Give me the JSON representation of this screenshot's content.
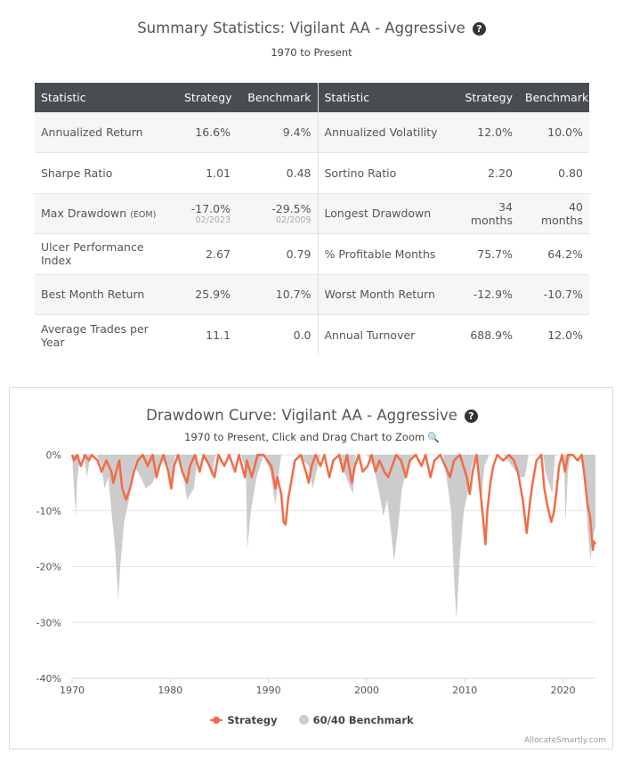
{
  "summary": {
    "title": "Summary Statistics: Vigilant AA - Aggressive",
    "subtitle": "1970 to Present",
    "help_glyph": "?",
    "headers": [
      "Statistic",
      "Strategy",
      "Benchmark",
      "Statistic",
      "Strategy",
      "Benchmark"
    ],
    "rows": [
      {
        "label1": "Annualized Return",
        "s1": "16.6%",
        "b1": "9.4%",
        "label2": "Annualized Volatility",
        "s2": "12.0%",
        "b2": "10.0%"
      },
      {
        "label1": "Sharpe Ratio",
        "s1": "1.01",
        "b1": "0.48",
        "label2": "Sortino Ratio",
        "s2": "2.20",
        "b2": "0.80"
      },
      {
        "label1": "Max Drawdown",
        "tag1": "(EOM)",
        "s1": "-17.0%",
        "s1_date": "02/2023",
        "b1": "-29.5%",
        "b1_date": "02/2009",
        "label2": "Longest Drawdown",
        "s2": "34 months",
        "b2": "40 months"
      },
      {
        "label1": "Ulcer Performance Index",
        "s1": "2.67",
        "b1": "0.79",
        "label2": "% Profitable Months",
        "s2": "75.7%",
        "b2": "64.2%"
      },
      {
        "label1": "Best Month Return",
        "s1": "25.9%",
        "b1": "10.7%",
        "label2": "Worst Month Return",
        "s2": "-12.9%",
        "b2": "-10.7%"
      },
      {
        "label1": "Average Trades per Year",
        "s1": "11.1",
        "b1": "0.0",
        "label2": "Annual Turnover",
        "s2": "688.9%",
        "b2": "12.0%"
      }
    ]
  },
  "chart": {
    "help_glyph": "?",
    "zoom_glyph": "🔍",
    "credits": "AllocateSmartly.com"
  },
  "chart_data": {
    "type": "area",
    "title": "Drawdown Curve: Vigilant AA - Aggressive",
    "subtitle": "1970 to Present, Click and Drag Chart to Zoom",
    "xlim": [
      1970,
      2023.3
    ],
    "ylim": [
      -40,
      0
    ],
    "x_ticks": [
      1970,
      1980,
      1990,
      2000,
      2010,
      2020
    ],
    "y_ticks": [
      0,
      -10,
      -20,
      -30,
      -40
    ],
    "y_tick_labels": [
      "0%",
      "-10%",
      "-20%",
      "-30%",
      "-40%"
    ],
    "legend": [
      "Strategy",
      "60/40 Benchmark"
    ],
    "series": [
      {
        "name": "60/40 Benchmark",
        "color": "#cccccc",
        "style": "area",
        "points": [
          [
            1970,
            0
          ],
          [
            1970.2,
            -6
          ],
          [
            1970.4,
            -11
          ],
          [
            1970.5,
            -5
          ],
          [
            1970.8,
            0
          ],
          [
            1971.2,
            0
          ],
          [
            1971.5,
            -4
          ],
          [
            1971.9,
            0
          ],
          [
            1972.5,
            0
          ],
          [
            1973.0,
            -2
          ],
          [
            1973.3,
            -6
          ],
          [
            1973.7,
            -4
          ],
          [
            1974.0,
            -10
          ],
          [
            1974.4,
            -17
          ],
          [
            1974.7,
            -26
          ],
          [
            1974.9,
            -20
          ],
          [
            1975.3,
            -12
          ],
          [
            1975.8,
            -8
          ],
          [
            1976.3,
            -2
          ],
          [
            1977.0,
            -4
          ],
          [
            1977.5,
            -6
          ],
          [
            1978.2,
            -5
          ],
          [
            1978.8,
            -2
          ],
          [
            1979.3,
            -1
          ],
          [
            1980.2,
            -5
          ],
          [
            1980.5,
            0
          ],
          [
            1981.2,
            -2
          ],
          [
            1981.7,
            -8
          ],
          [
            1982.4,
            -6
          ],
          [
            1982.8,
            0
          ],
          [
            1983.6,
            0
          ],
          [
            1984.2,
            -4
          ],
          [
            1984.6,
            0
          ],
          [
            1985.5,
            0
          ],
          [
            1986.7,
            0
          ],
          [
            1987.2,
            0
          ],
          [
            1987.7,
            -3
          ],
          [
            1987.85,
            -17
          ],
          [
            1988.2,
            -10
          ],
          [
            1988.8,
            -4
          ],
          [
            1989.5,
            0
          ],
          [
            1990.2,
            -3
          ],
          [
            1990.7,
            -9
          ],
          [
            1991.0,
            -4
          ],
          [
            1991.3,
            0
          ],
          [
            1992.0,
            0
          ],
          [
            1993.0,
            0
          ],
          [
            1994.1,
            -2
          ],
          [
            1994.5,
            -6
          ],
          [
            1994.9,
            -3
          ],
          [
            1995.3,
            0
          ],
          [
            1997.0,
            0
          ],
          [
            1998.6,
            -7
          ],
          [
            1998.9,
            0
          ],
          [
            2000.0,
            0
          ],
          [
            2000.7,
            -2
          ],
          [
            2001.3,
            -7
          ],
          [
            2001.7,
            -11
          ],
          [
            2002.1,
            -8
          ],
          [
            2002.5,
            -14
          ],
          [
            2002.8,
            -19
          ],
          [
            2003.2,
            -13
          ],
          [
            2003.6,
            -6
          ],
          [
            2004.2,
            -2
          ],
          [
            2005.0,
            0
          ],
          [
            2006.0,
            0
          ],
          [
            2007.0,
            0
          ],
          [
            2007.8,
            0
          ],
          [
            2008.3,
            -6
          ],
          [
            2008.6,
            -10
          ],
          [
            2008.9,
            -22
          ],
          [
            2009.15,
            -29.5
          ],
          [
            2009.5,
            -18
          ],
          [
            2009.9,
            -10
          ],
          [
            2010.4,
            -6
          ],
          [
            2010.7,
            -2
          ],
          [
            2011.2,
            0
          ],
          [
            2011.7,
            -8
          ],
          [
            2012.0,
            -2
          ],
          [
            2012.5,
            0
          ],
          [
            2014.0,
            0
          ],
          [
            2015.6,
            -4
          ],
          [
            2016.1,
            -4
          ],
          [
            2016.5,
            0
          ],
          [
            2018.0,
            0
          ],
          [
            2018.2,
            -3
          ],
          [
            2018.9,
            -7
          ],
          [
            2019.2,
            0
          ],
          [
            2020.1,
            0
          ],
          [
            2020.25,
            -12
          ],
          [
            2020.5,
            -3
          ],
          [
            2020.8,
            0
          ],
          [
            2021.9,
            0
          ],
          [
            2022.3,
            -6
          ],
          [
            2022.5,
            -13
          ],
          [
            2022.8,
            -19
          ],
          [
            2023.0,
            -15
          ],
          [
            2023.3,
            -13
          ]
        ]
      },
      {
        "name": "Strategy",
        "color": "#f26c47",
        "style": "line",
        "points": [
          [
            1970,
            0
          ],
          [
            1970.2,
            -1
          ],
          [
            1970.5,
            0
          ],
          [
            1970.9,
            -2
          ],
          [
            1971.3,
            0
          ],
          [
            1971.7,
            -1
          ],
          [
            1972.0,
            0
          ],
          [
            1972.6,
            -1
          ],
          [
            1973.0,
            -3
          ],
          [
            1973.5,
            -1
          ],
          [
            1974.0,
            -3
          ],
          [
            1974.2,
            -5
          ],
          [
            1974.5,
            -3
          ],
          [
            1974.8,
            -1
          ],
          [
            1975.1,
            -6
          ],
          [
            1975.5,
            -8
          ],
          [
            1975.9,
            -6
          ],
          [
            1976.3,
            -3
          ],
          [
            1976.7,
            -1
          ],
          [
            1977.2,
            0
          ],
          [
            1977.7,
            -2
          ],
          [
            1978.2,
            0
          ],
          [
            1978.6,
            -4
          ],
          [
            1978.9,
            -2
          ],
          [
            1979.3,
            0
          ],
          [
            1979.8,
            -3
          ],
          [
            1980.1,
            -6
          ],
          [
            1980.4,
            -2
          ],
          [
            1980.8,
            0
          ],
          [
            1981.2,
            -3
          ],
          [
            1981.7,
            -5
          ],
          [
            1982.0,
            -2
          ],
          [
            1982.5,
            0
          ],
          [
            1983.0,
            -3
          ],
          [
            1983.4,
            0
          ],
          [
            1984.0,
            -2
          ],
          [
            1984.5,
            -4
          ],
          [
            1984.9,
            0
          ],
          [
            1985.5,
            -2
          ],
          [
            1986.0,
            0
          ],
          [
            1986.6,
            -3
          ],
          [
            1987.0,
            0
          ],
          [
            1987.6,
            -4
          ],
          [
            1987.8,
            -1
          ],
          [
            1988.3,
            -4
          ],
          [
            1988.9,
            0
          ],
          [
            1989.5,
            0
          ],
          [
            1990.3,
            -2
          ],
          [
            1990.7,
            -6
          ],
          [
            1990.9,
            -4
          ],
          [
            1991.3,
            -7
          ],
          [
            1991.55,
            -12
          ],
          [
            1991.75,
            -12.5
          ],
          [
            1992.0,
            -8
          ],
          [
            1992.3,
            -5
          ],
          [
            1992.7,
            -1
          ],
          [
            1993.3,
            0
          ],
          [
            1993.8,
            -3
          ],
          [
            1994.1,
            -5
          ],
          [
            1994.4,
            -2
          ],
          [
            1994.8,
            0
          ],
          [
            1995.3,
            -2
          ],
          [
            1995.7,
            0
          ],
          [
            1996.2,
            -4
          ],
          [
            1996.6,
            -1
          ],
          [
            1997.2,
            0
          ],
          [
            1997.6,
            -3
          ],
          [
            1998.0,
            0
          ],
          [
            1998.5,
            -5
          ],
          [
            1998.8,
            -2
          ],
          [
            1999.2,
            0
          ],
          [
            1999.6,
            -3
          ],
          [
            2000.1,
            -2
          ],
          [
            2000.5,
            0
          ],
          [
            2000.9,
            -3
          ],
          [
            2001.3,
            -1
          ],
          [
            2001.8,
            -3
          ],
          [
            2002.2,
            -4
          ],
          [
            2002.6,
            -2
          ],
          [
            2003.0,
            0
          ],
          [
            2003.5,
            -1
          ],
          [
            2004.0,
            -4
          ],
          [
            2004.4,
            -1
          ],
          [
            2005.0,
            0
          ],
          [
            2005.6,
            -2
          ],
          [
            2006.0,
            0
          ],
          [
            2006.5,
            -4
          ],
          [
            2006.9,
            -1
          ],
          [
            2007.5,
            0
          ],
          [
            2008.0,
            -2
          ],
          [
            2008.5,
            -4
          ],
          [
            2008.9,
            -1
          ],
          [
            2009.5,
            0
          ],
          [
            2010.2,
            -4
          ],
          [
            2010.5,
            -7
          ],
          [
            2010.8,
            -3
          ],
          [
            2011.2,
            0
          ],
          [
            2011.5,
            -5
          ],
          [
            2011.9,
            -12
          ],
          [
            2012.1,
            -16
          ],
          [
            2012.3,
            -10
          ],
          [
            2012.6,
            -5
          ],
          [
            2012.9,
            -2
          ],
          [
            2013.3,
            0
          ],
          [
            2013.9,
            -1
          ],
          [
            2014.5,
            0
          ],
          [
            2015.0,
            -1
          ],
          [
            2015.4,
            -3
          ],
          [
            2015.9,
            -8
          ],
          [
            2016.3,
            -14
          ],
          [
            2016.6,
            -9
          ],
          [
            2016.9,
            -5
          ],
          [
            2017.3,
            -1
          ],
          [
            2017.8,
            0
          ],
          [
            2018.1,
            -6
          ],
          [
            2018.4,
            -9
          ],
          [
            2018.8,
            -12
          ],
          [
            2019.1,
            -10
          ],
          [
            2019.3,
            -7
          ],
          [
            2019.6,
            -2
          ],
          [
            2019.9,
            0
          ],
          [
            2020.2,
            -3
          ],
          [
            2020.5,
            0
          ],
          [
            2021.0,
            0
          ],
          [
            2021.5,
            -1
          ],
          [
            2021.9,
            0
          ],
          [
            2022.2,
            -4
          ],
          [
            2022.5,
            -9
          ],
          [
            2022.75,
            -11
          ],
          [
            2022.9,
            -14
          ],
          [
            2023.05,
            -17
          ],
          [
            2023.15,
            -15.5
          ],
          [
            2023.3,
            -16
          ]
        ]
      }
    ]
  }
}
